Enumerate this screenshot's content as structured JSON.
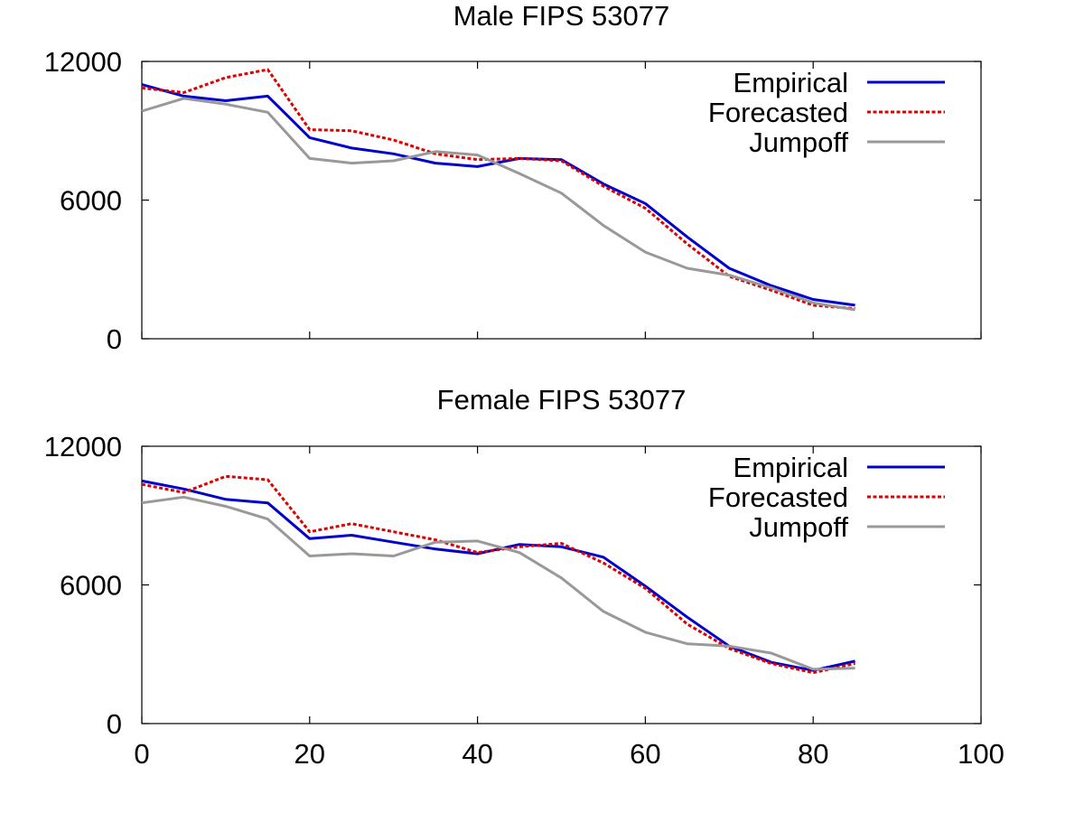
{
  "chart_data": [
    {
      "type": "line",
      "title": "Male FIPS 53077",
      "xlabel": "",
      "ylabel": "",
      "xlim": [
        0,
        100
      ],
      "ylim": [
        0,
        12000
      ],
      "xticks": [
        0,
        20,
        40,
        60,
        80,
        100
      ],
      "yticks": [
        0,
        6000,
        12000
      ],
      "show_xtick_labels": false,
      "legend_position": "top-right",
      "grid": false,
      "series": [
        {
          "name": "Empirical",
          "color": "#0000cc",
          "style": "solid",
          "x": [
            0,
            5,
            10,
            15,
            20,
            25,
            30,
            35,
            40,
            45,
            50,
            55,
            60,
            65,
            70,
            75,
            80,
            85
          ],
          "y": [
            11000,
            10500,
            10300,
            10500,
            8700,
            8250,
            8000,
            7600,
            7450,
            7800,
            7750,
            6700,
            5850,
            4400,
            3050,
            2300,
            1700,
            1450
          ]
        },
        {
          "name": "Forecasted",
          "color": "#dd0000",
          "style": "dashed",
          "x": [
            0,
            5,
            10,
            15,
            20,
            25,
            30,
            35,
            40,
            45,
            50,
            55,
            60,
            65,
            70,
            75,
            80,
            85
          ],
          "y": [
            10850,
            10650,
            11300,
            11650,
            9050,
            9000,
            8600,
            8000,
            7750,
            7800,
            7700,
            6600,
            5650,
            4100,
            2700,
            2100,
            1450,
            1300
          ]
        },
        {
          "name": "Jumpoff",
          "color": "#999999",
          "style": "solid",
          "x": [
            0,
            5,
            10,
            15,
            20,
            25,
            30,
            35,
            40,
            45,
            50,
            55,
            60,
            65,
            70,
            75,
            80,
            85
          ],
          "y": [
            9850,
            10400,
            10150,
            9800,
            7800,
            7600,
            7700,
            8100,
            7950,
            7150,
            6300,
            4900,
            3750,
            3050,
            2750,
            2200,
            1550,
            1250
          ]
        }
      ]
    },
    {
      "type": "line",
      "title": "Female FIPS 53077",
      "xlabel": "",
      "ylabel": "",
      "xlim": [
        0,
        100
      ],
      "ylim": [
        0,
        12000
      ],
      "xticks": [
        0,
        20,
        40,
        60,
        80,
        100
      ],
      "yticks": [
        0,
        6000,
        12000
      ],
      "show_xtick_labels": true,
      "legend_position": "top-right",
      "grid": false,
      "series": [
        {
          "name": "Empirical",
          "color": "#0000cc",
          "style": "solid",
          "x": [
            0,
            5,
            10,
            15,
            20,
            25,
            30,
            35,
            40,
            45,
            50,
            55,
            60,
            65,
            70,
            75,
            80,
            85
          ],
          "y": [
            10500,
            10150,
            9700,
            9550,
            8000,
            8150,
            7850,
            7550,
            7350,
            7750,
            7650,
            7200,
            5950,
            4600,
            3350,
            2650,
            2300,
            2700
          ]
        },
        {
          "name": "Forecasted",
          "color": "#dd0000",
          "style": "dashed",
          "x": [
            0,
            5,
            10,
            15,
            20,
            25,
            30,
            35,
            40,
            45,
            50,
            55,
            60,
            65,
            70,
            75,
            80,
            85
          ],
          "y": [
            10350,
            10000,
            10700,
            10550,
            8300,
            8650,
            8300,
            7950,
            7400,
            7650,
            7800,
            6950,
            5850,
            4300,
            3250,
            2600,
            2200,
            2600
          ]
        },
        {
          "name": "Jumpoff",
          "color": "#999999",
          "style": "solid",
          "x": [
            0,
            5,
            10,
            15,
            20,
            25,
            30,
            35,
            40,
            45,
            50,
            55,
            60,
            65,
            70,
            75,
            80,
            85
          ],
          "y": [
            9550,
            9800,
            9400,
            8850,
            7250,
            7350,
            7250,
            7850,
            7900,
            7400,
            6300,
            4850,
            3950,
            3450,
            3350,
            3050,
            2350,
            2400
          ]
        }
      ]
    }
  ]
}
